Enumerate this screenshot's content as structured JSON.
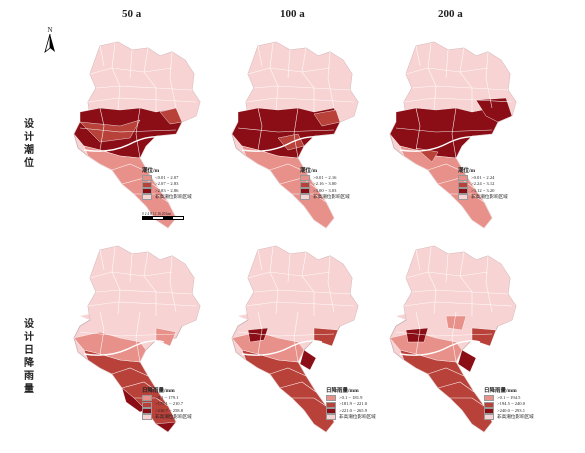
{
  "columns": [
    "50 a",
    "100 a",
    "200 a"
  ],
  "rows": [
    "设计潮位",
    "设计日降雨量"
  ],
  "north_label": "N",
  "scalebar_label": "0 2 4   8   12  16  20 km",
  "colors": {
    "base": "#f8d3d3",
    "c1": "#e8908a",
    "c2": "#b8413a",
    "c3": "#8b0e16",
    "border": "#c9aeb0"
  },
  "legends": [
    {
      "title": "潮位/m",
      "items": [
        "<0.01 ~ 2.07",
        ">2.07 ~ 2.83",
        ">2.83 ~ 2.86",
        "非高潮位影响区域"
      ]
    },
    {
      "title": "潮位/m",
      "items": [
        ">0.01 ~ 2.16",
        ">2.16 ~ 3.00",
        ">3.00 ~ 3.03",
        "非高潮位影响区域"
      ]
    },
    {
      "title": "潮位/m",
      "items": [
        ">0.01 ~ 2.24",
        ">2.24 ~ 3.12",
        ">3.12 ~ 3.20",
        "非高潮位影响区域"
      ]
    },
    {
      "title": "日降雨量/mm",
      "items": [
        ">0.1 ~ 179.1",
        ">179.1 ~ 210.7",
        ">210.7 ~ 258.8",
        "非高潮位影响区域"
      ]
    },
    {
      "title": "日降雨量/mm",
      "items": [
        ">0.1 ~ 181.9",
        ">181.9 ~ 221.0",
        ">221.0 ~ 265.9",
        "非高潮位影响区域"
      ]
    },
    {
      "title": "日降雨量/mm",
      "items": [
        ">0.1 ~ 194.5",
        ">194.5 ~ 240.0",
        ">240.0 ~ 293.1",
        "非高潮位影响区域"
      ]
    }
  ]
}
